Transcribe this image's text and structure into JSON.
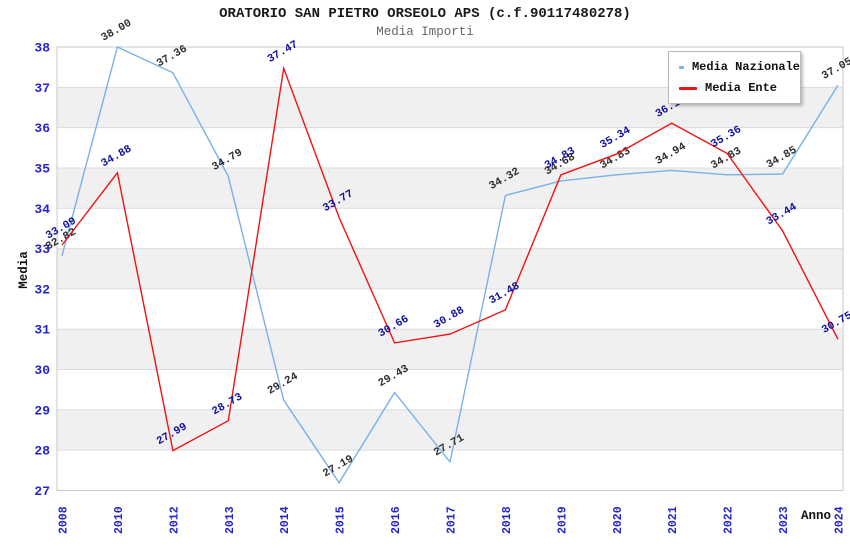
{
  "window": {
    "kind": "statistics-chart-image"
  },
  "chart_data": {
    "type": "line",
    "title": "ORATORIO SAN PIETRO ORSEOLO APS (c.f.90117480278)",
    "subtitle": "Media Importi",
    "xlabel": "Anno",
    "ylabel": "Media",
    "ylim": [
      27,
      38
    ],
    "y_tick_step": 1,
    "grid": "horizontal",
    "alternating_bands": true,
    "legend_position": "top-right",
    "categories": [
      "2008",
      "2010",
      "2012",
      "2013",
      "2014",
      "2015",
      "2016",
      "2017",
      "2018",
      "2019",
      "2020",
      "2021",
      "2022",
      "2023",
      "2024"
    ],
    "series": [
      {
        "name": "Media Nazionale",
        "color": "#79B1E8",
        "label_color": "#2e2e2e",
        "values": [
          32.82,
          38.0,
          37.36,
          34.79,
          29.24,
          27.19,
          29.43,
          27.71,
          34.32,
          34.68,
          34.83,
          34.94,
          34.83,
          34.85,
          37.05
        ]
      },
      {
        "name": "Media Ente",
        "color": "#F21212",
        "label_color": "#10109E",
        "values": [
          33.09,
          34.88,
          27.99,
          28.73,
          37.47,
          33.77,
          30.66,
          30.88,
          31.48,
          34.83,
          35.34,
          36.11,
          35.36,
          33.44,
          30.75
        ]
      }
    ],
    "colors": {
      "tick_label": "#2424CE",
      "band_gray": "#F0F0F0",
      "gridline": "#DCDCDC",
      "plot_border": "#C9C9C9",
      "title_text": "#1a1a1a",
      "subtitle_text": "#666666",
      "axis_title_text": "#111111"
    }
  }
}
